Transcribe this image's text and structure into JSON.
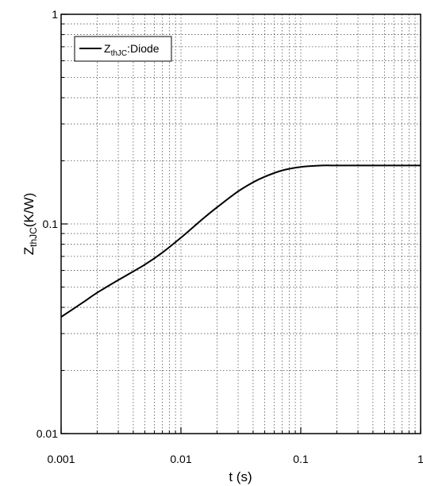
{
  "chart_data": {
    "type": "line",
    "xscale": "log",
    "yscale": "log",
    "xlim": [
      0.001,
      1
    ],
    "ylim": [
      0.01,
      1
    ],
    "grid": true,
    "legend_position": "top-left",
    "x_ticks": [
      {
        "value": 0.001,
        "label": "0.001"
      },
      {
        "value": 0.01,
        "label": "0.01"
      },
      {
        "value": 0.1,
        "label": "0.1"
      },
      {
        "value": 1,
        "label": "1"
      }
    ],
    "y_ticks": [
      {
        "value": 0.01,
        "label": "0.01"
      },
      {
        "value": 0.1,
        "label": "0.1"
      },
      {
        "value": 1,
        "label": "1"
      }
    ],
    "xlabel": "t (s)",
    "ylabel": {
      "main": "Z",
      "sub": "thJC",
      "unit": "(K/W)"
    },
    "series": [
      {
        "name": {
          "main": "Z",
          "sub": "thJC",
          "suffix": ":Diode"
        },
        "color": "#000000",
        "x": [
          0.001,
          0.0015,
          0.002,
          0.003,
          0.005,
          0.007,
          0.01,
          0.015,
          0.02,
          0.03,
          0.04,
          0.05,
          0.07,
          0.1,
          0.15,
          0.2,
          0.3,
          0.5,
          1
        ],
        "y": [
          0.036,
          0.042,
          0.047,
          0.054,
          0.064,
          0.073,
          0.086,
          0.105,
          0.12,
          0.143,
          0.158,
          0.168,
          0.18,
          0.187,
          0.19,
          0.19,
          0.19,
          0.19,
          0.19
        ]
      }
    ]
  }
}
